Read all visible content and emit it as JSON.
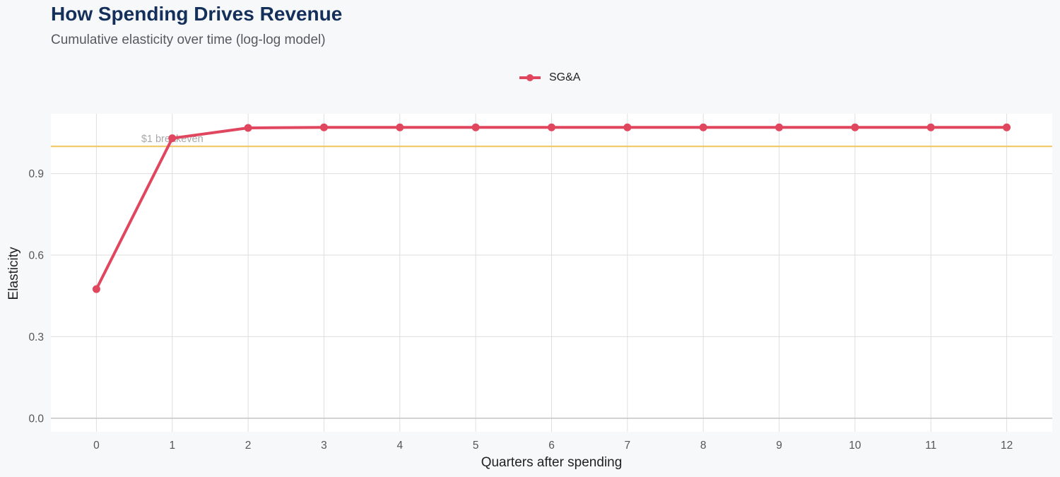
{
  "header": {
    "title": "How Spending Drives Revenue",
    "subtitle": "Cumulative elasticity over time (log-log model)"
  },
  "legend": {
    "position": "top-center",
    "items": [
      {
        "label": "SG&A",
        "color": "#e0475f",
        "marker": "circle"
      }
    ]
  },
  "colors": {
    "background": "#f7f8fa",
    "panel": "#ffffff",
    "grid": "#dedede",
    "series": "#e0475f",
    "reference_line": "#f2c96b",
    "title": "#14305a"
  },
  "chart_data": {
    "type": "line",
    "title": "How Spending Drives Revenue",
    "subtitle": "Cumulative elasticity over time (log-log model)",
    "xlabel": "Quarters after spending",
    "ylabel": "Elasticity",
    "x": [
      0,
      1,
      2,
      3,
      4,
      5,
      6,
      7,
      8,
      9,
      10,
      11,
      12
    ],
    "x_ticks": [
      "0",
      "1",
      "2",
      "3",
      "4",
      "5",
      "6",
      "7",
      "8",
      "9",
      "10",
      "11",
      "12"
    ],
    "y_ticks": [
      "0.0",
      "0.3",
      "0.6",
      "0.9"
    ],
    "y_tick_values": [
      0.0,
      0.3,
      0.6,
      0.9
    ],
    "xlim": [
      -0.6,
      12.6
    ],
    "ylim": [
      -0.05,
      1.12
    ],
    "grid": true,
    "legend_position": "top-center",
    "series": [
      {
        "name": "SG&A",
        "color": "#e0475f",
        "values": [
          0.475,
          1.03,
          1.068,
          1.07,
          1.07,
          1.07,
          1.07,
          1.07,
          1.07,
          1.07,
          1.07,
          1.07,
          1.07
        ]
      }
    ],
    "reference_lines": [
      {
        "y": 1.0,
        "label": "$1 breakeven",
        "label_x": 1,
        "color": "#f2c96b"
      }
    ]
  }
}
